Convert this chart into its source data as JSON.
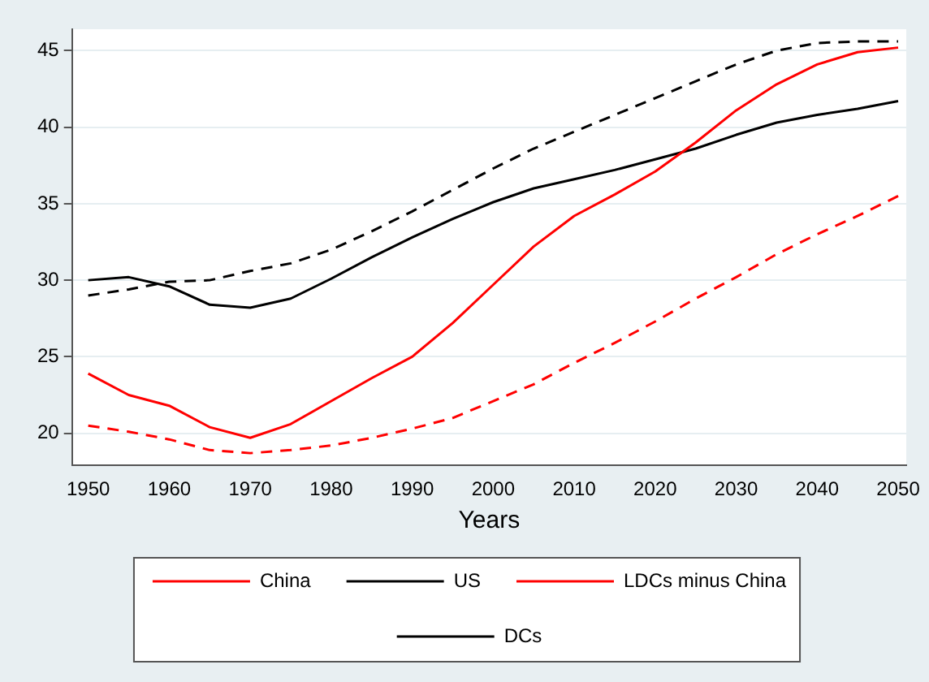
{
  "chart_data": {
    "type": "line",
    "xlabel": "Years",
    "x": [
      1950,
      1955,
      1960,
      1965,
      1970,
      1975,
      1980,
      1985,
      1990,
      1995,
      2000,
      2005,
      2010,
      2015,
      2020,
      2025,
      2030,
      2035,
      2040,
      2045,
      2050
    ],
    "series": [
      {
        "name": "China",
        "color": "#ff0000",
        "line_style": "solid",
        "values": [
          23.9,
          22.5,
          21.8,
          20.4,
          19.7,
          20.6,
          22.1,
          23.6,
          25.0,
          27.2,
          29.7,
          32.2,
          34.2,
          35.6,
          37.1,
          39.0,
          41.1,
          42.8,
          44.1,
          44.9,
          45.2
        ]
      },
      {
        "name": "US",
        "color": "#000000",
        "line_style": "solid",
        "values": [
          30.0,
          30.2,
          29.6,
          28.4,
          28.2,
          28.8,
          30.1,
          31.5,
          32.8,
          34.0,
          35.1,
          36.0,
          36.6,
          37.2,
          37.9,
          38.6,
          39.5,
          40.3,
          40.8,
          41.2,
          41.7
        ]
      },
      {
        "name": "LDCs minus China",
        "color": "#ff0000",
        "line_style": "dashed",
        "values": [
          20.5,
          20.1,
          19.6,
          18.9,
          18.7,
          18.9,
          19.2,
          19.7,
          20.3,
          21.0,
          22.1,
          23.2,
          24.6,
          25.9,
          27.3,
          28.8,
          30.2,
          31.7,
          33.0,
          34.2,
          35.5
        ]
      },
      {
        "name": "DCs",
        "color": "#000000",
        "line_style": "dashed",
        "values": [
          29.0,
          29.4,
          29.9,
          30.0,
          30.6,
          31.1,
          32.0,
          33.2,
          34.5,
          35.9,
          37.3,
          38.6,
          39.7,
          40.8,
          41.9,
          43.0,
          44.1,
          45.0,
          45.5,
          45.6,
          45.6
        ]
      }
    ],
    "xlim": [
      1948,
      2051
    ],
    "xticks": [
      1950,
      1960,
      1970,
      1980,
      1990,
      2000,
      2010,
      2020,
      2030,
      2040,
      2050
    ],
    "ylim": [
      17.9,
      46.4
    ],
    "yticks": [
      20,
      25,
      30,
      35,
      40,
      45
    ],
    "grid": "y",
    "legend": "bottom",
    "marker": "none"
  }
}
